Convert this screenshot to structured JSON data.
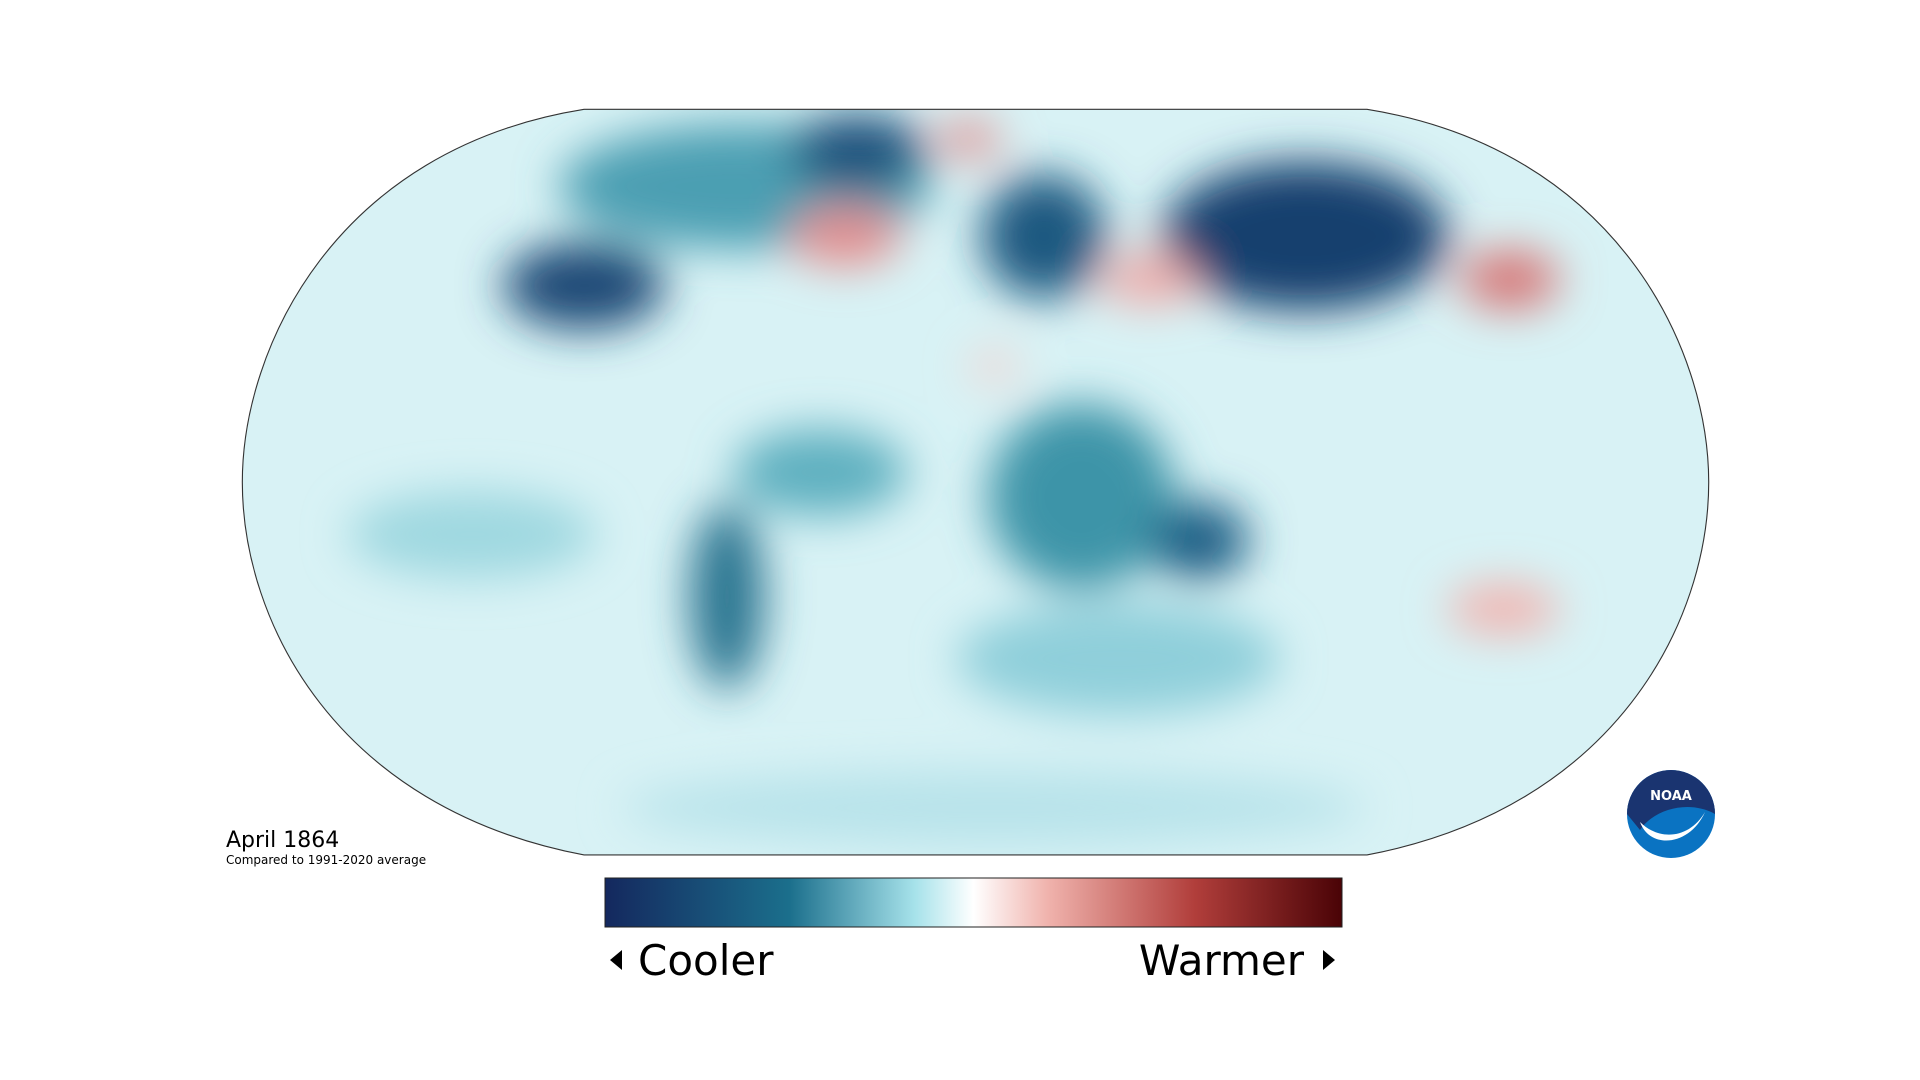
{
  "map": {
    "title": "April 1864",
    "subtitle": "Compared to 1991-2020 average"
  },
  "legend": {
    "low_label": "Cooler",
    "high_label": "Warmer"
  },
  "logo": {
    "text": "NOAA"
  }
}
